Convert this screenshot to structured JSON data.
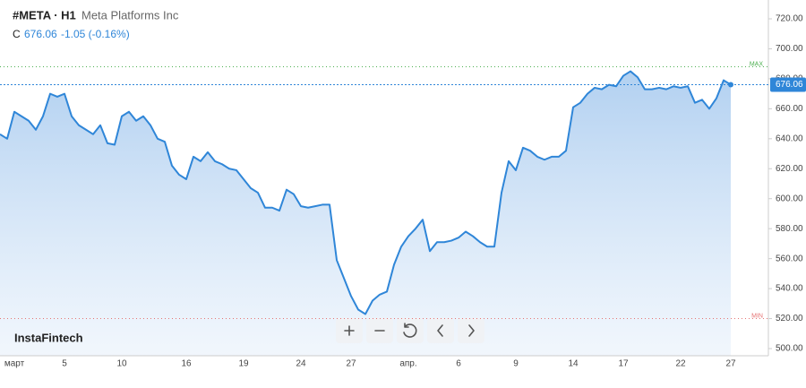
{
  "chart_data": {
    "type": "line",
    "symbol": "#META · H1",
    "title": "Meta Platforms Inc",
    "close_label": "C",
    "last_price": 676.06,
    "change": "-1.05 (-0.16%)",
    "brand": "InstaFintech",
    "max_line": {
      "label": "MAX",
      "value": 688,
      "color": "#4caf50"
    },
    "min_line": {
      "label": "MIN",
      "value": 520,
      "color": "#e57373"
    },
    "categories": [
      null,
      null,
      "март",
      null,
      null,
      null,
      null,
      null,
      null,
      "5",
      null,
      null,
      null,
      null,
      null,
      null,
      null,
      "10",
      null,
      null,
      null,
      null,
      null,
      null,
      null,
      null,
      "16",
      null,
      null,
      null,
      null,
      null,
      null,
      null,
      "19",
      null,
      null,
      null,
      null,
      null,
      null,
      null,
      "24",
      null,
      null,
      null,
      null,
      null,
      null,
      "27",
      null,
      null,
      null,
      null,
      null,
      null,
      null,
      "апр.",
      null,
      null,
      null,
      null,
      null,
      null,
      "6",
      null,
      null,
      null,
      null,
      null,
      null,
      null,
      "9",
      null,
      null,
      null,
      null,
      null,
      null,
      null,
      "14",
      null,
      null,
      null,
      null,
      null,
      null,
      "17",
      null,
      null,
      null,
      null,
      null,
      null,
      null,
      "22",
      null,
      null,
      null,
      null,
      null,
      null,
      "27"
    ],
    "series": [
      {
        "name": "META",
        "color": "#2f86d8",
        "values": [
          643,
          640,
          658,
          655,
          652,
          646,
          655,
          670,
          668,
          670,
          655,
          649,
          646,
          643,
          649,
          637,
          636,
          655,
          658,
          652,
          655,
          649,
          640,
          638,
          622,
          616,
          613,
          628,
          625,
          631,
          625,
          623,
          620,
          619,
          613,
          607,
          604,
          594,
          594,
          592,
          606,
          603,
          595,
          594,
          595,
          596,
          596,
          559,
          547,
          535,
          526,
          523,
          532,
          536,
          538,
          556,
          568,
          575,
          580,
          586,
          565,
          571,
          571,
          572,
          574,
          578,
          575,
          571,
          568,
          568,
          604,
          625,
          619,
          634,
          632,
          628,
          626,
          628,
          628,
          632,
          661,
          664,
          670,
          674,
          673,
          676,
          675,
          682,
          685,
          681,
          673,
          673,
          674,
          673,
          675,
          674,
          675,
          664,
          666,
          660,
          667,
          679,
          676.06
        ]
      }
    ],
    "ylim": [
      500,
      720
    ],
    "yticks": [
      {
        "value": 500,
        "label": "500.00"
      },
      {
        "value": 520,
        "label": "520.00"
      },
      {
        "value": 540,
        "label": "540.00"
      },
      {
        "value": 560,
        "label": "560.00"
      },
      {
        "value": 580,
        "label": "580.00"
      },
      {
        "value": 600,
        "label": "600.00"
      },
      {
        "value": 620,
        "label": "620.00"
      },
      {
        "value": 640,
        "label": "640.00"
      },
      {
        "value": 660,
        "label": "660.00"
      },
      {
        "value": 680,
        "label": "680.00"
      },
      {
        "value": 700,
        "label": "700.00"
      },
      {
        "value": 720,
        "label": "720.00"
      }
    ],
    "grid": false
  }
}
